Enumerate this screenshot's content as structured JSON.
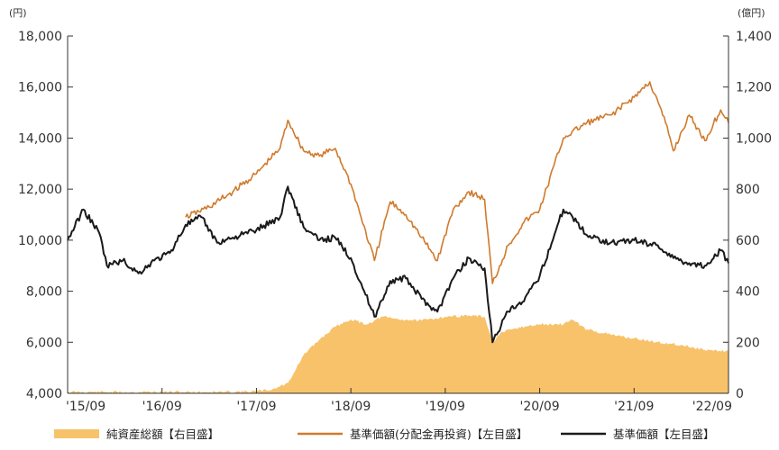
{
  "chart_data": {
    "type": "line",
    "title": "",
    "left_axis": {
      "unit": "(円)",
      "ylim": [
        4000,
        18000
      ],
      "ticks": [
        4000,
        6000,
        8000,
        10000,
        12000,
        14000,
        16000,
        18000
      ],
      "tick_labels": [
        "4,000",
        "6,000",
        "8,000",
        "10,000",
        "12,000",
        "14,000",
        "16,000",
        "18,000"
      ]
    },
    "right_axis": {
      "unit": "(億円)",
      "ylim": [
        0,
        1400
      ],
      "ticks": [
        0,
        200,
        400,
        600,
        800,
        1000,
        1200,
        1400
      ],
      "tick_labels": [
        "0",
        "200",
        "400",
        "600",
        "800",
        "1,000",
        "1,200",
        "1,400"
      ]
    },
    "x_axis": {
      "range": [
        "2015-09",
        "2022-09"
      ],
      "tick_dates": [
        "2015-09",
        "2016-09",
        "2017-09",
        "2018-09",
        "2019-09",
        "2020-09",
        "2021-09",
        "2022-09"
      ],
      "tick_labels": [
        "'15/09",
        "'16/09",
        "'17/09",
        "'18/09",
        "'19/09",
        "'20/09",
        "'21/09",
        "'22/09"
      ]
    },
    "grid": false,
    "legend_position": "bottom",
    "series": [
      {
        "name": "純資産総額【右目盛】",
        "kind": "area",
        "axis": "right",
        "color": "#f7c26a",
        "points": [
          [
            "2015-09",
            5
          ],
          [
            "2016-09",
            5
          ],
          [
            "2017-05",
            5
          ],
          [
            "2017-09",
            8
          ],
          [
            "2017-11",
            15
          ],
          [
            "2018-01",
            40
          ],
          [
            "2018-03",
            150
          ],
          [
            "2018-05",
            210
          ],
          [
            "2018-07",
            260
          ],
          [
            "2018-09",
            290
          ],
          [
            "2018-11",
            270
          ],
          [
            "2019-01",
            300
          ],
          [
            "2019-03",
            290
          ],
          [
            "2019-06",
            285
          ],
          [
            "2019-09",
            300
          ],
          [
            "2019-12",
            305
          ],
          [
            "2020-02",
            300
          ],
          [
            "2020-03",
            200
          ],
          [
            "2020-04",
            235
          ],
          [
            "2020-06",
            255
          ],
          [
            "2020-09",
            270
          ],
          [
            "2020-12",
            270
          ],
          [
            "2021-01",
            290
          ],
          [
            "2021-03",
            250
          ],
          [
            "2021-06",
            230
          ],
          [
            "2021-09",
            215
          ],
          [
            "2021-12",
            200
          ],
          [
            "2022-03",
            190
          ],
          [
            "2022-06",
            170
          ],
          [
            "2022-09",
            165
          ]
        ]
      },
      {
        "name": "基準価額(分配金再投資)【左目盛】",
        "kind": "line",
        "axis": "left",
        "color": "#d07a2c",
        "points": [
          [
            "2016-12",
            10900
          ],
          [
            "2017-03",
            11300
          ],
          [
            "2017-06",
            11900
          ],
          [
            "2017-09",
            12600
          ],
          [
            "2017-12",
            13600
          ],
          [
            "2018-01",
            14700
          ],
          [
            "2018-03",
            13500
          ],
          [
            "2018-05",
            13300
          ],
          [
            "2018-07",
            13600
          ],
          [
            "2018-09",
            12200
          ],
          [
            "2018-12",
            9200
          ],
          [
            "2019-02",
            11500
          ],
          [
            "2019-04",
            11000
          ],
          [
            "2019-06",
            10100
          ],
          [
            "2019-08",
            9200
          ],
          [
            "2019-10",
            11200
          ],
          [
            "2019-12",
            11900
          ],
          [
            "2020-02",
            11600
          ],
          [
            "2020-03",
            8300
          ],
          [
            "2020-05",
            9800
          ],
          [
            "2020-07",
            10700
          ],
          [
            "2020-09",
            11200
          ],
          [
            "2020-12",
            14000
          ],
          [
            "2021-03",
            14600
          ],
          [
            "2021-06",
            14900
          ],
          [
            "2021-09",
            15600
          ],
          [
            "2021-11",
            16200
          ],
          [
            "2022-01",
            14600
          ],
          [
            "2022-02",
            13500
          ],
          [
            "2022-04",
            14900
          ],
          [
            "2022-06",
            13900
          ],
          [
            "2022-08",
            15100
          ],
          [
            "2022-09",
            14600
          ]
        ]
      },
      {
        "name": "基準価額【左目盛】",
        "kind": "line",
        "axis": "left",
        "color": "#1a1a1a",
        "points": [
          [
            "2015-09",
            10000
          ],
          [
            "2015-11",
            11200
          ],
          [
            "2016-01",
            10300
          ],
          [
            "2016-02",
            9000
          ],
          [
            "2016-04",
            9200
          ],
          [
            "2016-06",
            8700
          ],
          [
            "2016-08",
            9200
          ],
          [
            "2016-10",
            9500
          ],
          [
            "2016-12",
            10600
          ],
          [
            "2017-02",
            10900
          ],
          [
            "2017-04",
            9900
          ],
          [
            "2017-06",
            10100
          ],
          [
            "2017-09",
            10400
          ],
          [
            "2017-12",
            10900
          ],
          [
            "2018-01",
            12100
          ],
          [
            "2018-03",
            10500
          ],
          [
            "2018-05",
            10000
          ],
          [
            "2018-07",
            10100
          ],
          [
            "2018-09",
            9300
          ],
          [
            "2018-12",
            7000
          ],
          [
            "2019-02",
            8400
          ],
          [
            "2019-04",
            8500
          ],
          [
            "2019-06",
            7700
          ],
          [
            "2019-08",
            7200
          ],
          [
            "2019-10",
            8500
          ],
          [
            "2019-12",
            9300
          ],
          [
            "2020-02",
            8900
          ],
          [
            "2020-03",
            6000
          ],
          [
            "2020-05",
            7200
          ],
          [
            "2020-07",
            7600
          ],
          [
            "2020-09",
            8600
          ],
          [
            "2020-12",
            11200
          ],
          [
            "2021-01",
            11000
          ],
          [
            "2021-03",
            10200
          ],
          [
            "2021-06",
            9900
          ],
          [
            "2021-09",
            10000
          ],
          [
            "2021-12",
            9800
          ],
          [
            "2022-02",
            9300
          ],
          [
            "2022-04",
            9100
          ],
          [
            "2022-06",
            9000
          ],
          [
            "2022-08",
            9600
          ],
          [
            "2022-09",
            9100
          ]
        ]
      }
    ]
  }
}
